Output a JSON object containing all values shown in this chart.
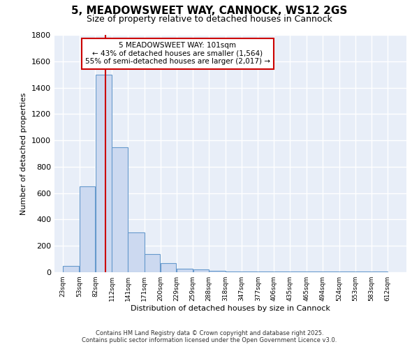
{
  "title_line1": "5, MEADOWSWEET WAY, CANNOCK, WS12 2GS",
  "title_line2": "Size of property relative to detached houses in Cannock",
  "xlabel": "Distribution of detached houses by size in Cannock",
  "ylabel": "Number of detached properties",
  "bar_edges": [
    23,
    53,
    82,
    112,
    141,
    171,
    200,
    229,
    259,
    288,
    318,
    347,
    377,
    406,
    435,
    465,
    494,
    524,
    553,
    583,
    612
  ],
  "bar_heights": [
    50,
    650,
    1500,
    950,
    300,
    140,
    70,
    25,
    20,
    10,
    5,
    5,
    5,
    5,
    5,
    5,
    5,
    5,
    5,
    5
  ],
  "bar_color": "#ccd9f0",
  "bar_edge_color": "#6699cc",
  "vline_x": 101,
  "vline_color": "#cc0000",
  "annotation_line1": "5 MEADOWSWEET WAY: 101sqm",
  "annotation_line2": "← 43% of detached houses are smaller (1,564)",
  "annotation_line3": "55% of semi-detached houses are larger (2,017) →",
  "annotation_box_color": "white",
  "annotation_box_edge": "#cc0000",
  "ylim": [
    0,
    1800
  ],
  "yticks": [
    0,
    200,
    400,
    600,
    800,
    1000,
    1200,
    1400,
    1600,
    1800
  ],
  "bg_color": "#e8eef8",
  "grid_color": "white",
  "footer_line1": "Contains HM Land Registry data © Crown copyright and database right 2025.",
  "footer_line2": "Contains public sector information licensed under the Open Government Licence v3.0."
}
